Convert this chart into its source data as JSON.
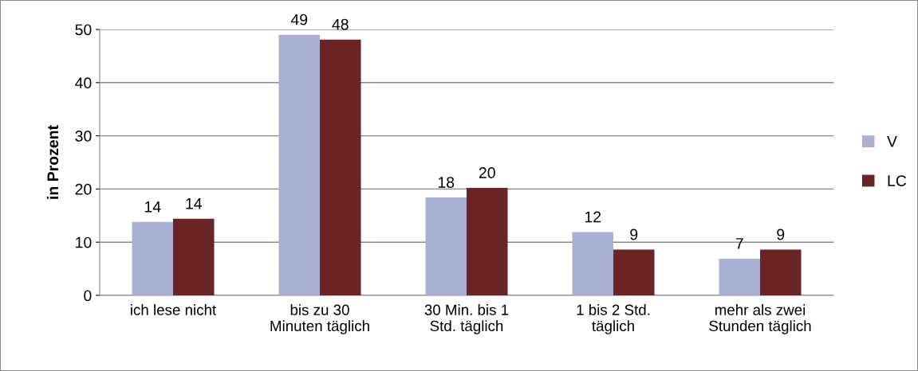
{
  "chart_data": {
    "type": "bar",
    "ylabel": "in Prozent",
    "categories": [
      "ich lese nicht",
      "bis zu 30\nMinuten täglich",
      "30 Min. bis 1\nStd. täglich",
      "1 bis 2 Std.\ntäglich",
      "mehr als zwei\nStunden täglich"
    ],
    "series": [
      {
        "name": "V",
        "color": "#a9b0d4",
        "values": [
          13.8,
          49,
          18.4,
          11.9,
          6.9
        ],
        "value_labels": [
          "14",
          "49",
          "18",
          "12",
          "7"
        ]
      },
      {
        "name": "LC",
        "color": "#6b2426",
        "values": [
          14.4,
          48.1,
          20.2,
          8.6,
          8.6
        ],
        "value_labels": [
          "14",
          "48",
          "20",
          "9",
          "9"
        ]
      }
    ],
    "ylim": [
      0,
      50
    ],
    "yticks": [
      0,
      10,
      20,
      30,
      40,
      50
    ],
    "grid": "y",
    "legend": "right"
  }
}
